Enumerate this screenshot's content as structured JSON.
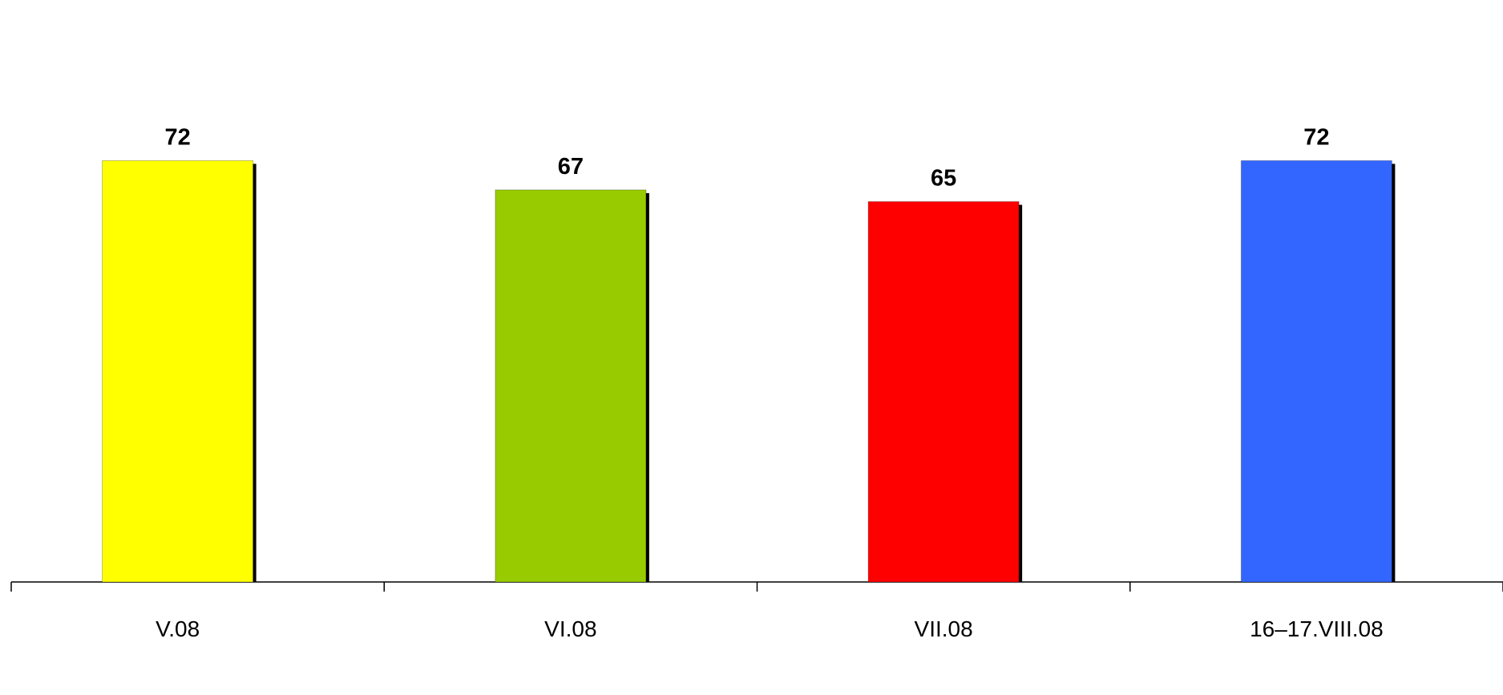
{
  "chart_data": {
    "type": "bar",
    "categories": [
      "V.08",
      "VI.08",
      "VII.08",
      "16–17.VIII.08"
    ],
    "values": [
      72,
      67,
      65,
      72
    ],
    "colors": [
      "#ffff00",
      "#99cc00",
      "#ff0000",
      "#3366ff"
    ],
    "shadow_color": "#000000",
    "ylim": [
      0,
      80
    ],
    "grid": false,
    "legend": "none",
    "data_labels": true
  }
}
